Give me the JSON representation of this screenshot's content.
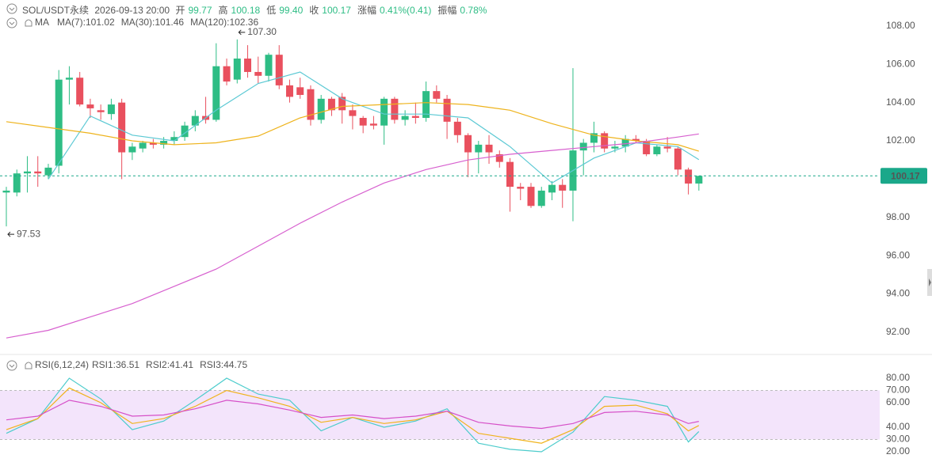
{
  "header": {
    "symbol": "SOL/USDT永续",
    "datetime": "2026-09-13 20:00",
    "fields": [
      {
        "label": "开",
        "value": "99.77"
      },
      {
        "label": "高",
        "value": "100.18"
      },
      {
        "label": "低",
        "value": "99.40"
      },
      {
        "label": "收",
        "value": "100.17"
      },
      {
        "label": "涨幅",
        "value": "0.41%(0.41)"
      },
      {
        "label": "振幅",
        "value": "0.78%"
      }
    ]
  },
  "chart_data": [
    {
      "type": "candlestick",
      "legend_title": "MA",
      "ylim": [
        90.84,
        109.36
      ],
      "yticks": [
        {
          "value": 92,
          "label": "92.00"
        },
        {
          "value": 94,
          "label": "94.00"
        },
        {
          "value": 96,
          "label": "96.00"
        },
        {
          "value": 98,
          "label": "98.00"
        },
        {
          "value": 100,
          "label": "100.00"
        },
        {
          "value": 102,
          "label": "102.00"
        },
        {
          "value": 104,
          "label": "104.00"
        },
        {
          "value": 106,
          "label": "106.00"
        },
        {
          "value": 108,
          "label": "108.00"
        }
      ],
      "up_color": "#2ebd85",
      "down_color": "#e9505e",
      "candles": {
        "open": [
          99.3,
          99.3,
          100.3,
          100.4,
          100.2,
          100.7,
          105.2,
          105.3,
          103.9,
          103.6,
          103.4,
          104.0,
          101.4,
          101.6,
          101.9,
          101.8,
          102.0,
          102.2,
          102.8,
          103.3,
          103.1,
          105.9,
          105.2,
          106.3,
          105.6,
          105.4,
          106.5,
          104.9,
          104.8,
          104.7,
          103.1,
          104.2,
          104.3,
          103.6,
          103.2,
          102.9,
          102.8,
          104.2,
          103.1,
          103.3,
          103.2,
          104.6,
          104.2,
          103.0,
          102.3,
          101.4,
          101.8,
          101.3,
          100.9,
          99.6,
          99.6,
          98.6,
          99.3,
          99.7,
          99.4,
          101.5,
          101.9,
          102.4,
          101.6,
          101.7,
          102.1,
          102.0,
          101.3,
          101.7,
          101.6,
          100.5,
          99.77
        ],
        "high": [
          99.6,
          100.5,
          101.2,
          101.2,
          100.8,
          105.7,
          105.9,
          105.6,
          104.2,
          103.9,
          104.2,
          104.2,
          101.9,
          102.0,
          102.1,
          102.2,
          102.5,
          103.0,
          103.6,
          104.3,
          107.1,
          106.3,
          107.3,
          107.0,
          106.4,
          106.6,
          107.0,
          105.2,
          105.3,
          104.9,
          104.4,
          104.3,
          104.5,
          103.9,
          103.3,
          103.3,
          104.3,
          104.3,
          103.6,
          104.0,
          105.1,
          104.9,
          104.4,
          103.2,
          102.4,
          102.0,
          102.3,
          101.5,
          101.1,
          99.8,
          99.8,
          99.6,
          99.9,
          100.0,
          105.8,
          102.1,
          103.0,
          102.5,
          102.0,
          102.3,
          102.3,
          102.1,
          101.8,
          102.2,
          101.7,
          100.6,
          100.18
        ],
        "low": [
          97.53,
          99.1,
          99.3,
          99.6,
          100.0,
          100.3,
          103.9,
          103.8,
          103.2,
          103.1,
          103.1,
          100.0,
          101.0,
          101.4,
          101.6,
          101.6,
          101.8,
          102.0,
          102.5,
          102.9,
          103.0,
          104.9,
          105.0,
          105.3,
          105.0,
          105.1,
          104.7,
          104.0,
          104.2,
          102.8,
          102.9,
          103.3,
          102.9,
          102.6,
          102.4,
          102.6,
          101.8,
          102.9,
          102.8,
          102.9,
          103.0,
          104.0,
          102.1,
          101.9,
          100.1,
          100.3,
          100.8,
          100.6,
          98.3,
          98.9,
          98.5,
          98.5,
          98.9,
          98.5,
          97.8,
          100.2,
          101.4,
          101.4,
          101.4,
          101.4,
          101.9,
          101.2,
          101.2,
          101.4,
          100.2,
          99.2,
          99.4
        ],
        "close": [
          99.4,
          100.3,
          100.4,
          100.3,
          100.6,
          105.2,
          105.3,
          103.9,
          103.7,
          103.5,
          103.9,
          101.4,
          101.7,
          101.9,
          101.8,
          102.0,
          102.2,
          102.8,
          103.3,
          103.1,
          105.9,
          105.1,
          106.3,
          105.6,
          105.4,
          106.5,
          104.9,
          104.3,
          104.4,
          103.1,
          104.2,
          103.6,
          103.6,
          103.3,
          102.8,
          102.8,
          104.2,
          103.1,
          103.3,
          103.2,
          104.6,
          104.2,
          103.0,
          102.3,
          101.4,
          101.8,
          101.4,
          100.9,
          99.6,
          99.5,
          98.6,
          99.4,
          99.7,
          99.4,
          101.5,
          101.9,
          102.4,
          101.6,
          101.7,
          102.1,
          102.0,
          101.3,
          101.7,
          101.6,
          100.5,
          99.77,
          100.17
        ]
      },
      "series": [
        {
          "name": "MA(7):101.02",
          "color": "#5cc9d4",
          "x": [
            4,
            8,
            12,
            16,
            20,
            24,
            28,
            32,
            36,
            40,
            44,
            48,
            52,
            56,
            60,
            64,
            66
          ],
          "values": [
            100.0,
            103.3,
            102.3,
            102.0,
            103.6,
            105.0,
            105.6,
            104.2,
            103.4,
            103.4,
            103.2,
            101.7,
            99.8,
            101.1,
            101.9,
            101.7,
            101.02
          ]
        },
        {
          "name": "MA(30):101.46",
          "color": "#eeb31c",
          "x": [
            0,
            4,
            8,
            12,
            16,
            20,
            24,
            28,
            32,
            36,
            40,
            44,
            48,
            52,
            56,
            60,
            64,
            66
          ],
          "values": [
            103.0,
            102.7,
            102.4,
            102.0,
            101.8,
            101.9,
            102.25,
            103.2,
            103.8,
            103.9,
            104.0,
            103.9,
            103.6,
            102.9,
            102.3,
            102.0,
            101.8,
            101.46
          ]
        },
        {
          "name": "MA(120):102.36",
          "color": "#d760cf",
          "x": [
            0,
            4,
            8,
            12,
            16,
            20,
            24,
            28,
            32,
            36,
            40,
            44,
            48,
            52,
            56,
            60,
            64,
            66
          ],
          "values": [
            91.7,
            92.1,
            92.8,
            93.5,
            94.4,
            95.3,
            96.5,
            97.7,
            98.8,
            99.8,
            100.5,
            101.0,
            101.3,
            101.5,
            101.7,
            101.9,
            102.2,
            102.36
          ]
        }
      ],
      "last_price": {
        "value": 100.17,
        "label": "100.17"
      },
      "annotations": [
        {
          "value": 107.3,
          "label": "107.30"
        },
        {
          "value": 97.53,
          "label": "97.53"
        }
      ]
    },
    {
      "type": "line",
      "legend_title": "RSI(6,12,24)",
      "ylim": [
        8.4,
        89
      ],
      "yticks": [
        {
          "value": 80,
          "label": "80.00"
        },
        {
          "value": 70,
          "label": "70.00"
        },
        {
          "value": 60,
          "label": "60.00"
        },
        {
          "value": 40,
          "label": "40.00"
        },
        {
          "value": 30,
          "label": "30.00"
        },
        {
          "value": 20,
          "label": "20.00"
        }
      ],
      "band": [
        30,
        70
      ],
      "band_color": "#f3e4fb",
      "series": [
        {
          "name": "RSI1:36.51",
          "color": "#4ccccc",
          "x": [
            0,
            3,
            6,
            9,
            12,
            15,
            18,
            21,
            24,
            27,
            30,
            33,
            36,
            39,
            42,
            45,
            48,
            51,
            54,
            57,
            60,
            63,
            65,
            66
          ],
          "values": [
            35,
            47,
            80,
            63,
            38,
            45,
            62,
            80,
            67,
            62,
            37,
            48,
            40,
            45,
            55,
            27,
            22,
            20,
            36,
            65,
            62,
            57,
            28,
            36.51
          ]
        },
        {
          "name": "RSI2:41.41",
          "color": "#f0b31c",
          "x": [
            0,
            3,
            6,
            9,
            12,
            15,
            18,
            21,
            24,
            27,
            30,
            33,
            36,
            39,
            42,
            45,
            48,
            51,
            54,
            57,
            60,
            63,
            65,
            66
          ],
          "values": [
            38,
            47,
            72,
            60,
            43,
            47,
            57,
            70,
            64,
            57,
            44,
            48,
            43,
            46,
            53,
            35,
            31,
            27,
            38,
            57,
            58,
            51,
            37,
            41.41
          ]
        },
        {
          "name": "RSI3:44.75",
          "color": "#d650c8",
          "x": [
            0,
            3,
            6,
            9,
            12,
            15,
            18,
            21,
            24,
            27,
            30,
            33,
            36,
            39,
            42,
            45,
            48,
            51,
            54,
            57,
            60,
            63,
            65,
            66
          ],
          "values": [
            46,
            49,
            62,
            57,
            49,
            50,
            55,
            62,
            59,
            54,
            48,
            50,
            47,
            49,
            53,
            44,
            41,
            39,
            43,
            52,
            53,
            50,
            43,
            44.75
          ]
        }
      ]
    }
  ]
}
